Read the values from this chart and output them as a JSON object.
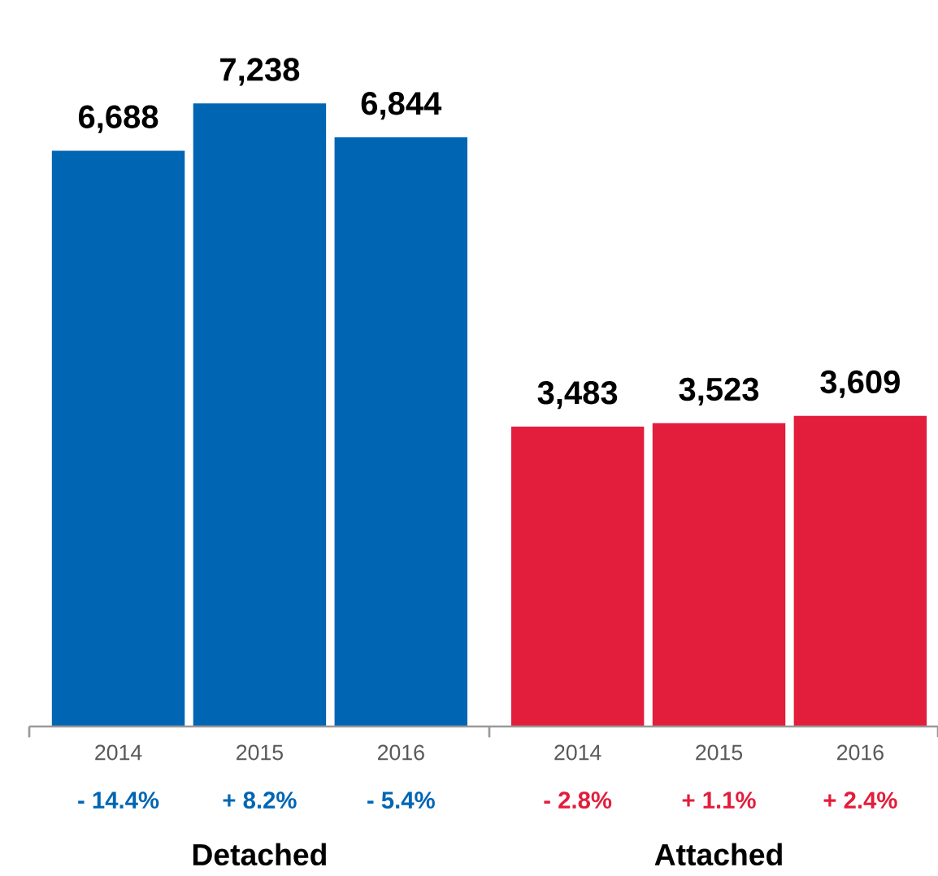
{
  "chart_data": {
    "type": "bar",
    "categories": [
      "2014",
      "2015",
      "2016",
      "2014",
      "2015",
      "2016"
    ],
    "values": [
      6688,
      7238,
      6844,
      3483,
      3523,
      3609
    ],
    "value_labels": [
      "6,688",
      "7,238",
      "6,844",
      "3,483",
      "3,523",
      "3,609"
    ],
    "colors": [
      "#0066b3",
      "#0066b3",
      "#0066b3",
      "#e31d3c",
      "#e31d3c",
      "#e31d3c"
    ],
    "annotations": [
      "- 14.4%",
      "+ 8.2%",
      "- 5.4%",
      "- 2.8%",
      "+ 1.1%",
      "+ 2.4%",
      "Detached",
      "Attached"
    ]
  }
}
